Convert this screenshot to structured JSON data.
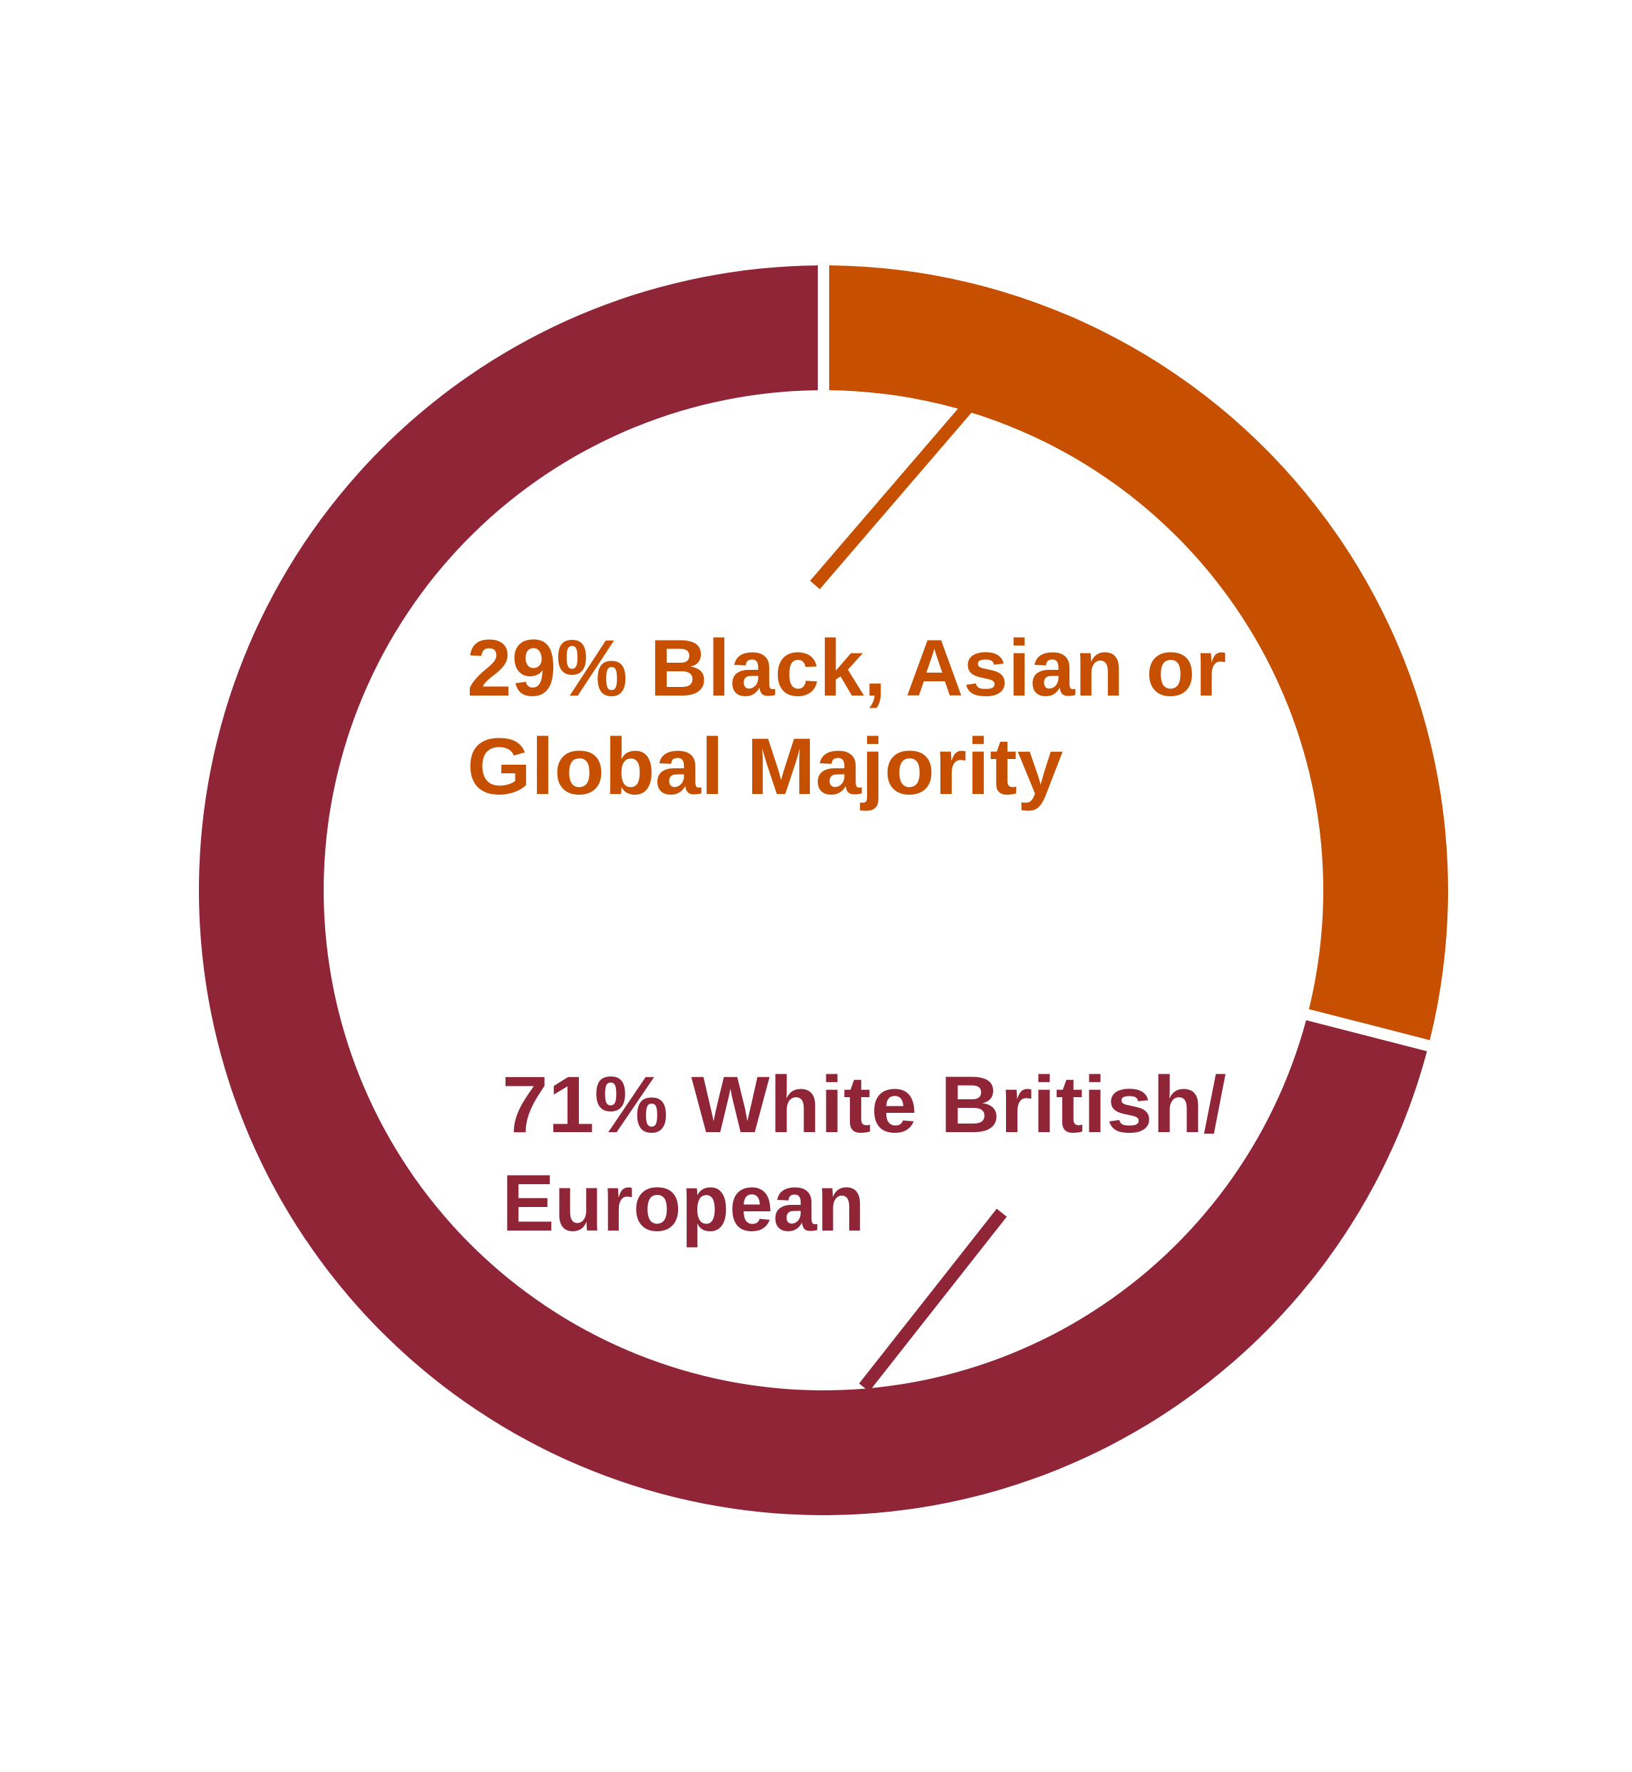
{
  "chart_data": {
    "type": "pie",
    "donut": true,
    "legend": "none",
    "slices": [
      {
        "label_line1": "29% Black, Asian or",
        "label_line2": "Global Majority",
        "value": 29,
        "color": "#C64F00"
      },
      {
        "label_line1": "71% White British/",
        "label_line2": "European",
        "value": 71,
        "color": "#912538"
      }
    ]
  }
}
